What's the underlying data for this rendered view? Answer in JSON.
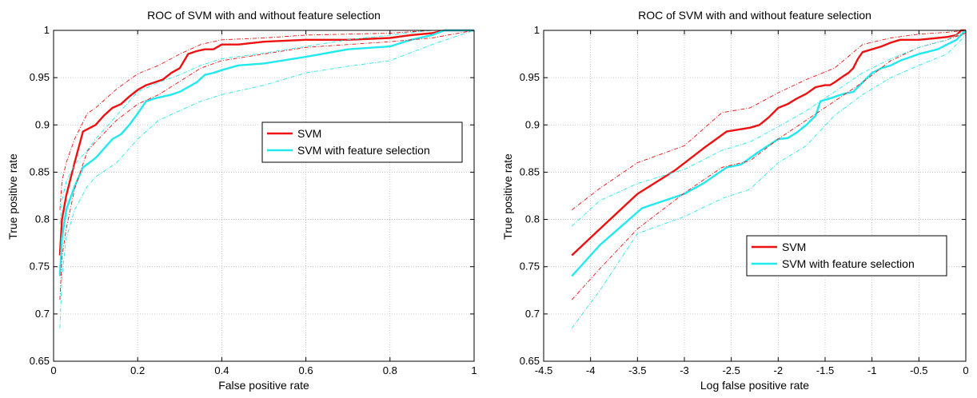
{
  "colors": {
    "svm": "#ee1111",
    "svm_fs": "#22e8f0",
    "grid": "#bbbbbb",
    "axis": "#000000"
  },
  "chart_data": [
    {
      "type": "line",
      "title": "ROC of SVM with and without feature selection",
      "xlabel": "False positive rate",
      "ylabel": "True positive rate",
      "xlim": [
        0,
        1
      ],
      "ylim": [
        0.65,
        1
      ],
      "xticks": [
        0,
        0.2,
        0.4,
        0.6,
        0.8,
        1
      ],
      "xtick_labels": [
        "0",
        "0.2",
        "0.4",
        "0.6",
        "0.8",
        "1"
      ],
      "yticks": [
        0.65,
        0.7,
        0.75,
        0.8,
        0.85,
        0.9,
        0.95,
        1
      ],
      "ytick_labels": [
        "0.65",
        "0.7",
        "0.75",
        "0.8",
        "0.85",
        "0.9",
        "0.95",
        "1"
      ],
      "grid": true,
      "legend_position": "center-right",
      "series": [
        {
          "name": "SVM",
          "color": "#ee1111",
          "style": "solid",
          "x": [
            0.015,
            0.02,
            0.03,
            0.05,
            0.07,
            0.1,
            0.12,
            0.14,
            0.16,
            0.18,
            0.2,
            0.22,
            0.24,
            0.26,
            0.28,
            0.3,
            0.32,
            0.34,
            0.36,
            0.38,
            0.4,
            0.44,
            0.5,
            0.6,
            0.7,
            0.8,
            0.85,
            0.9,
            0.93,
            1.0
          ],
          "y": [
            0.762,
            0.8,
            0.825,
            0.86,
            0.893,
            0.9,
            0.91,
            0.918,
            0.922,
            0.93,
            0.937,
            0.942,
            0.945,
            0.948,
            0.955,
            0.96,
            0.975,
            0.978,
            0.98,
            0.98,
            0.985,
            0.985,
            0.988,
            0.99,
            0.99,
            0.992,
            0.995,
            0.997,
            1.0,
            1.0
          ]
        },
        {
          "name": "SVM with feature selection",
          "color": "#22e8f0",
          "style": "solid",
          "x": [
            0.015,
            0.02,
            0.03,
            0.05,
            0.07,
            0.1,
            0.12,
            0.14,
            0.16,
            0.18,
            0.2,
            0.22,
            0.24,
            0.26,
            0.28,
            0.3,
            0.32,
            0.34,
            0.36,
            0.38,
            0.4,
            0.44,
            0.5,
            0.6,
            0.7,
            0.8,
            0.85,
            0.9,
            0.93,
            1.0
          ],
          "y": [
            0.74,
            0.78,
            0.81,
            0.835,
            0.855,
            0.865,
            0.875,
            0.885,
            0.89,
            0.9,
            0.912,
            0.925,
            0.928,
            0.93,
            0.932,
            0.935,
            0.94,
            0.945,
            0.953,
            0.955,
            0.958,
            0.963,
            0.965,
            0.972,
            0.98,
            0.983,
            0.99,
            0.995,
            1.0,
            1.0
          ]
        },
        {
          "color": "#ee1111",
          "style": "dashdot",
          "x": [
            0.015,
            0.02,
            0.03,
            0.05,
            0.08,
            0.1,
            0.15,
            0.2,
            0.25,
            0.3,
            0.35,
            0.4,
            0.5,
            0.6,
            0.7,
            0.8,
            0.9,
            1.0
          ],
          "y": [
            0.81,
            0.84,
            0.86,
            0.885,
            0.912,
            0.918,
            0.938,
            0.954,
            0.963,
            0.975,
            0.985,
            0.99,
            0.992,
            0.995,
            0.996,
            0.997,
            1.0,
            1.0
          ]
        },
        {
          "color": "#ee1111",
          "style": "dashdot",
          "x": [
            0.015,
            0.02,
            0.03,
            0.05,
            0.08,
            0.1,
            0.15,
            0.2,
            0.25,
            0.3,
            0.35,
            0.4,
            0.5,
            0.6,
            0.7,
            0.8,
            0.9,
            1.0
          ],
          "y": [
            0.715,
            0.76,
            0.79,
            0.832,
            0.872,
            0.882,
            0.905,
            0.922,
            0.932,
            0.946,
            0.96,
            0.968,
            0.975,
            0.982,
            0.985,
            0.988,
            0.992,
            1.0
          ]
        },
        {
          "color": "#22e8f0",
          "style": "dashdot",
          "x": [
            0.015,
            0.02,
            0.03,
            0.05,
            0.08,
            0.1,
            0.15,
            0.2,
            0.25,
            0.3,
            0.35,
            0.4,
            0.5,
            0.6,
            0.7,
            0.8,
            0.9,
            1.0
          ],
          "y": [
            0.795,
            0.82,
            0.84,
            0.858,
            0.873,
            0.885,
            0.91,
            0.935,
            0.945,
            0.953,
            0.963,
            0.97,
            0.976,
            0.983,
            0.99,
            0.995,
            1.0,
            1.0
          ]
        },
        {
          "color": "#22e8f0",
          "style": "dashdot",
          "x": [
            0.015,
            0.02,
            0.03,
            0.05,
            0.08,
            0.1,
            0.15,
            0.2,
            0.25,
            0.3,
            0.35,
            0.4,
            0.5,
            0.6,
            0.7,
            0.8,
            0.9,
            1.0
          ],
          "y": [
            0.685,
            0.74,
            0.78,
            0.81,
            0.835,
            0.845,
            0.86,
            0.885,
            0.905,
            0.915,
            0.925,
            0.932,
            0.942,
            0.955,
            0.962,
            0.968,
            0.985,
            1.0
          ]
        }
      ]
    },
    {
      "type": "line",
      "title": "ROC of SVM with and without feature selection",
      "xlabel": "Log false positive rate",
      "ylabel": "True positive rate",
      "xlim": [
        -4.5,
        0
      ],
      "ylim": [
        0.65,
        1
      ],
      "xticks": [
        -4.5,
        -4,
        -3.5,
        -3,
        -2.5,
        -2,
        -1.5,
        -1,
        -0.5,
        0
      ],
      "xtick_labels": [
        "-4.5",
        "-4",
        "-3.5",
        "-3",
        "-2.5",
        "-2",
        "-1.5",
        "-1",
        "-0.5",
        "0"
      ],
      "yticks": [
        0.65,
        0.7,
        0.75,
        0.8,
        0.85,
        0.9,
        0.95,
        1
      ],
      "ytick_labels": [
        "0.65",
        "0.7",
        "0.75",
        "0.8",
        "0.85",
        "0.9",
        "0.95",
        "1"
      ],
      "grid": true,
      "legend_position": "lower-right",
      "series": [
        {
          "name": "SVM",
          "color": "#ee1111",
          "style": "solid",
          "x": [
            -4.2,
            -3.9,
            -3.5,
            -3.1,
            -2.8,
            -2.55,
            -2.3,
            -2.2,
            -2.1,
            -2.0,
            -1.9,
            -1.8,
            -1.7,
            -1.6,
            -1.5,
            -1.45,
            -1.4,
            -1.3,
            -1.25,
            -1.2,
            -1.15,
            -1.1,
            -1.0,
            -0.9,
            -0.8,
            -0.7,
            -0.5,
            -0.3,
            -0.2,
            -0.1,
            -0.05,
            0.0
          ],
          "y": [
            0.762,
            0.79,
            0.827,
            0.852,
            0.875,
            0.893,
            0.897,
            0.9,
            0.908,
            0.918,
            0.922,
            0.928,
            0.933,
            0.94,
            0.942,
            0.942,
            0.945,
            0.952,
            0.955,
            0.96,
            0.97,
            0.977,
            0.98,
            0.983,
            0.987,
            0.99,
            0.99,
            0.992,
            0.993,
            0.995,
            1.0,
            1.0
          ]
        },
        {
          "name": "SVM with feature selection",
          "color": "#22e8f0",
          "style": "solid",
          "x": [
            -4.2,
            -3.9,
            -3.45,
            -3.0,
            -2.8,
            -2.55,
            -2.4,
            -2.2,
            -2.0,
            -1.9,
            -1.8,
            -1.7,
            -1.6,
            -1.55,
            -1.45,
            -1.3,
            -1.2,
            -1.1,
            -1.0,
            -0.9,
            -0.8,
            -0.7,
            -0.5,
            -0.3,
            -0.2,
            -0.1,
            -0.05,
            0.0
          ],
          "y": [
            0.74,
            0.773,
            0.812,
            0.827,
            0.838,
            0.855,
            0.858,
            0.872,
            0.885,
            0.886,
            0.892,
            0.9,
            0.91,
            0.925,
            0.928,
            0.933,
            0.935,
            0.945,
            0.955,
            0.96,
            0.963,
            0.968,
            0.975,
            0.98,
            0.985,
            0.99,
            0.995,
            1.0
          ]
        },
        {
          "color": "#ee1111",
          "style": "dashdot",
          "x": [
            -4.2,
            -3.9,
            -3.5,
            -3.0,
            -2.6,
            -2.3,
            -2.0,
            -1.7,
            -1.4,
            -1.1,
            -0.8,
            -0.5,
            -0.2,
            0.0
          ],
          "y": [
            0.81,
            0.833,
            0.86,
            0.878,
            0.913,
            0.918,
            0.934,
            0.948,
            0.96,
            0.985,
            0.992,
            0.996,
            0.998,
            1.0
          ]
        },
        {
          "color": "#ee1111",
          "style": "dashdot",
          "x": [
            -4.2,
            -3.9,
            -3.5,
            -3.0,
            -2.6,
            -2.3,
            -2.0,
            -1.7,
            -1.4,
            -1.1,
            -0.8,
            -0.5,
            -0.2,
            0.0
          ],
          "y": [
            0.715,
            0.748,
            0.79,
            0.828,
            0.855,
            0.862,
            0.885,
            0.905,
            0.925,
            0.945,
            0.968,
            0.982,
            0.99,
            0.997
          ]
        },
        {
          "color": "#22e8f0",
          "style": "dashdot",
          "x": [
            -4.2,
            -3.9,
            -3.5,
            -3.0,
            -2.6,
            -2.3,
            -2.0,
            -1.7,
            -1.4,
            -1.1,
            -0.8,
            -0.5,
            -0.2,
            0.0
          ],
          "y": [
            0.793,
            0.82,
            0.838,
            0.853,
            0.873,
            0.882,
            0.898,
            0.915,
            0.935,
            0.955,
            0.97,
            0.982,
            0.99,
            1.0
          ]
        },
        {
          "color": "#22e8f0",
          "style": "dashdot",
          "x": [
            -4.2,
            -3.9,
            -3.5,
            -3.0,
            -2.6,
            -2.3,
            -2.0,
            -1.7,
            -1.4,
            -1.1,
            -0.8,
            -0.5,
            -0.2,
            0.0
          ],
          "y": [
            0.685,
            0.725,
            0.785,
            0.803,
            0.822,
            0.832,
            0.86,
            0.878,
            0.91,
            0.932,
            0.95,
            0.963,
            0.975,
            0.995
          ]
        }
      ]
    }
  ]
}
